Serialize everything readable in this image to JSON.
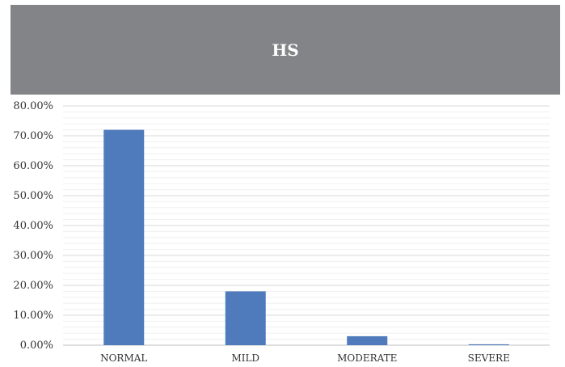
{
  "chart_data": {
    "type": "bar",
    "title": "HS",
    "categories": [
      "NORMAL",
      "MILD",
      "MODERATE",
      "SEVERE"
    ],
    "values": [
      72.0,
      18.0,
      3.0,
      0.3
    ],
    "ylim": [
      0,
      80
    ],
    "yticks": [
      "0.00%",
      "10.00%",
      "20.00%",
      "30.00%",
      "40.00%",
      "50.00%",
      "60.00%",
      "70.00%",
      "80.00%"
    ],
    "ytick_values": [
      0,
      10,
      20,
      30,
      40,
      50,
      60,
      70,
      80
    ],
    "xlabel": "",
    "ylabel": "",
    "grid": true,
    "bar_color": "#4f7bbd",
    "title_background": "#838487"
  }
}
